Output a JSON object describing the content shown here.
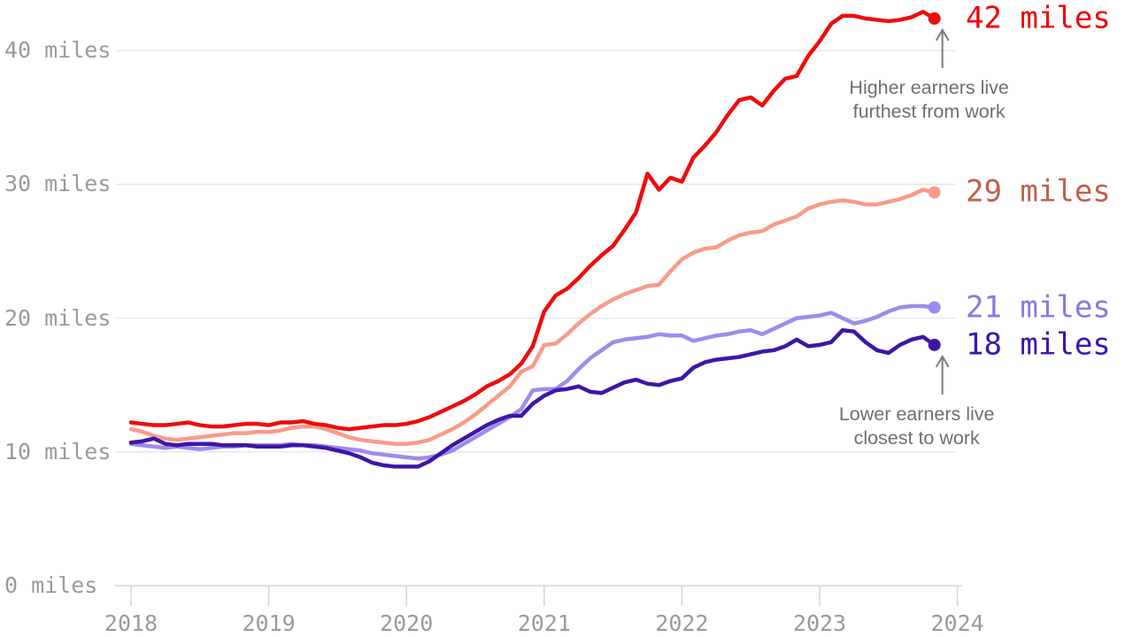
{
  "chart_data": {
    "type": "line",
    "title": "",
    "unit": "miles",
    "x_start_year": 2018,
    "x_interval": "monthly",
    "x_axis": {
      "tick_years": [
        2018,
        2019,
        2020,
        2021,
        2022,
        2023,
        2024
      ],
      "labels": [
        "2018",
        "2019",
        "2020",
        "2021",
        "2022",
        "2023",
        "2024"
      ]
    },
    "y_axis": {
      "ticks": [
        0,
        10,
        20,
        30,
        40
      ],
      "labels": [
        "0 miles",
        "10 miles",
        "20 miles",
        "30 miles",
        "40 miles"
      ],
      "range": [
        0,
        44
      ],
      "grid": true
    },
    "series": [
      {
        "name": "higher-earners",
        "end_label": "42 miles",
        "line_color": "#ee0c0c",
        "label_color": "#f20000",
        "values": [
          12.2,
          12.1,
          12.0,
          12.0,
          12.1,
          12.2,
          12.0,
          11.9,
          11.9,
          12.0,
          12.1,
          12.1,
          12.0,
          12.2,
          12.2,
          12.3,
          12.1,
          12.0,
          11.8,
          11.7,
          11.8,
          11.9,
          12.0,
          12.0,
          12.1,
          12.3,
          12.6,
          13.0,
          13.4,
          13.8,
          14.3,
          14.9,
          15.3,
          15.8,
          16.6,
          17.9,
          20.5,
          21.7,
          22.2,
          23.0,
          23.9,
          24.7,
          25.4,
          26.6,
          27.9,
          30.8,
          29.6,
          30.5,
          30.2,
          32.0,
          32.9,
          33.9,
          35.2,
          36.3,
          36.5,
          35.9,
          37.0,
          37.9,
          38.1,
          39.6,
          40.7,
          42.0,
          42.6,
          42.6,
          42.4,
          42.3,
          42.2,
          42.3,
          42.5,
          42.9,
          42.4
        ]
      },
      {
        "name": "upper-middle-earners",
        "end_label": "29 miles",
        "line_color": "#f89b8a",
        "label_color": "#c05f4e",
        "values": [
          11.7,
          11.5,
          11.2,
          11.0,
          10.9,
          11.0,
          11.1,
          11.2,
          11.3,
          11.4,
          11.4,
          11.5,
          11.5,
          11.6,
          11.8,
          11.9,
          11.9,
          11.7,
          11.4,
          11.1,
          10.9,
          10.8,
          10.7,
          10.6,
          10.6,
          10.7,
          10.9,
          11.3,
          11.7,
          12.2,
          12.8,
          13.5,
          14.2,
          14.9,
          16.0,
          16.4,
          18.0,
          18.1,
          18.8,
          19.6,
          20.3,
          20.9,
          21.4,
          21.8,
          22.1,
          22.4,
          22.5,
          23.5,
          24.4,
          24.9,
          25.2,
          25.3,
          25.8,
          26.2,
          26.4,
          26.5,
          27.0,
          27.3,
          27.6,
          28.2,
          28.5,
          28.7,
          28.8,
          28.7,
          28.5,
          28.5,
          28.7,
          28.9,
          29.2,
          29.6,
          29.4
        ]
      },
      {
        "name": "lower-middle-earners",
        "end_label": "21 miles",
        "line_color": "#9d8bee",
        "label_color": "#8a78e0",
        "values": [
          10.6,
          10.5,
          10.4,
          10.3,
          10.4,
          10.3,
          10.2,
          10.3,
          10.4,
          10.4,
          10.5,
          10.5,
          10.5,
          10.5,
          10.6,
          10.5,
          10.5,
          10.4,
          10.3,
          10.2,
          10.1,
          9.9,
          9.8,
          9.7,
          9.6,
          9.5,
          9.6,
          9.8,
          10.1,
          10.6,
          11.1,
          11.6,
          12.1,
          12.6,
          13.2,
          14.6,
          14.7,
          14.7,
          15.3,
          16.2,
          17.0,
          17.6,
          18.2,
          18.4,
          18.5,
          18.6,
          18.8,
          18.7,
          18.7,
          18.3,
          18.5,
          18.7,
          18.8,
          19.0,
          19.1,
          18.8,
          19.2,
          19.6,
          20.0,
          20.1,
          20.2,
          20.4,
          20.0,
          19.6,
          19.8,
          20.1,
          20.5,
          20.8,
          20.9,
          20.9,
          20.8
        ]
      },
      {
        "name": "lower-earners",
        "end_label": "18 miles",
        "line_color": "#3e16a6",
        "label_color": "#3d13b2",
        "values": [
          10.7,
          10.8,
          11.0,
          10.6,
          10.5,
          10.6,
          10.6,
          10.6,
          10.5,
          10.5,
          10.5,
          10.4,
          10.4,
          10.4,
          10.5,
          10.5,
          10.4,
          10.3,
          10.1,
          9.9,
          9.6,
          9.2,
          9.0,
          8.9,
          8.9,
          8.9,
          9.3,
          9.9,
          10.5,
          11.0,
          11.5,
          12.0,
          12.4,
          12.7,
          12.7,
          13.6,
          14.2,
          14.6,
          14.7,
          14.9,
          14.5,
          14.4,
          14.8,
          15.2,
          15.4,
          15.1,
          15.0,
          15.3,
          15.5,
          16.3,
          16.7,
          16.9,
          17.0,
          17.1,
          17.3,
          17.5,
          17.6,
          17.9,
          18.4,
          17.9,
          18.0,
          18.2,
          19.1,
          19.0,
          18.2,
          17.6,
          17.4,
          18.0,
          18.4,
          18.6,
          18.0
        ]
      }
    ],
    "annotations": [
      {
        "id": "higher",
        "series": "higher-earners",
        "lines": [
          "Higher earners live",
          "furthest from work"
        ]
      },
      {
        "id": "lower",
        "series": "lower-earners",
        "lines": [
          "Lower earners live",
          "closest to work"
        ]
      }
    ]
  },
  "colors": {
    "background": "#ffffff",
    "grid": "#e8e8e8",
    "axis": "#d6d6d6",
    "axis_text": "#9a9a9a",
    "annotation_text": "#6f6f6f",
    "arrow": "#7c7c7c"
  }
}
